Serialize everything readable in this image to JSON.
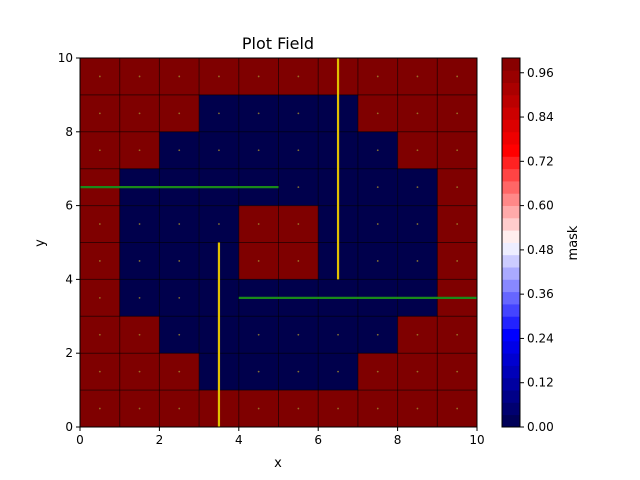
{
  "chart_data": {
    "type": "heatmap",
    "title": "Plot Field",
    "xlabel": "x",
    "ylabel": "y",
    "xlim": [
      0,
      10
    ],
    "ylim": [
      0,
      10
    ],
    "x_ticks": [
      "0",
      "2",
      "4",
      "6",
      "8",
      "10"
    ],
    "y_ticks": [
      "0",
      "2",
      "4",
      "6",
      "8",
      "10"
    ],
    "grid": false,
    "colorbar": {
      "label": "mask",
      "range": [
        0,
        1
      ],
      "ticks": [
        "0.00",
        "0.12",
        "0.24",
        "0.36",
        "0.48",
        "0.60",
        "0.72",
        "0.84",
        "0.96"
      ],
      "colormap": "seismic",
      "color_min": "#00004c",
      "color_mid": "#ffffff",
      "color_max": "#7f0000"
    },
    "mask_rows_top_to_bottom": [
      [
        1,
        1,
        1,
        1,
        1,
        1,
        1,
        1,
        1,
        1
      ],
      [
        1,
        1,
        1,
        0,
        0,
        0,
        0,
        1,
        1,
        1
      ],
      [
        1,
        1,
        0,
        0,
        0,
        0,
        0,
        0,
        1,
        1
      ],
      [
        1,
        0,
        0,
        0,
        0,
        0,
        0,
        0,
        0,
        1
      ],
      [
        1,
        0,
        0,
        0,
        1,
        1,
        0,
        0,
        0,
        1
      ],
      [
        1,
        0,
        0,
        0,
        1,
        1,
        0,
        0,
        0,
        1
      ],
      [
        1,
        0,
        0,
        0,
        0,
        0,
        0,
        0,
        0,
        1
      ],
      [
        1,
        1,
        0,
        0,
        0,
        0,
        0,
        0,
        1,
        1
      ],
      [
        1,
        1,
        1,
        0,
        0,
        0,
        0,
        1,
        1,
        1
      ],
      [
        1,
        1,
        1,
        1,
        1,
        1,
        1,
        1,
        1,
        1
      ]
    ],
    "lines": [
      {
        "color": "#1a8a1a",
        "x": [
          0,
          5
        ],
        "y": [
          6.5,
          6.5
        ]
      },
      {
        "color": "#1a8a1a",
        "x": [
          4,
          10
        ],
        "y": [
          3.5,
          3.5
        ]
      },
      {
        "color": "#e0c000",
        "x": [
          6.5,
          6.5
        ],
        "y": [
          4,
          10
        ]
      },
      {
        "color": "#e0c000",
        "x": [
          3.5,
          3.5
        ],
        "y": [
          0,
          5
        ]
      }
    ]
  }
}
